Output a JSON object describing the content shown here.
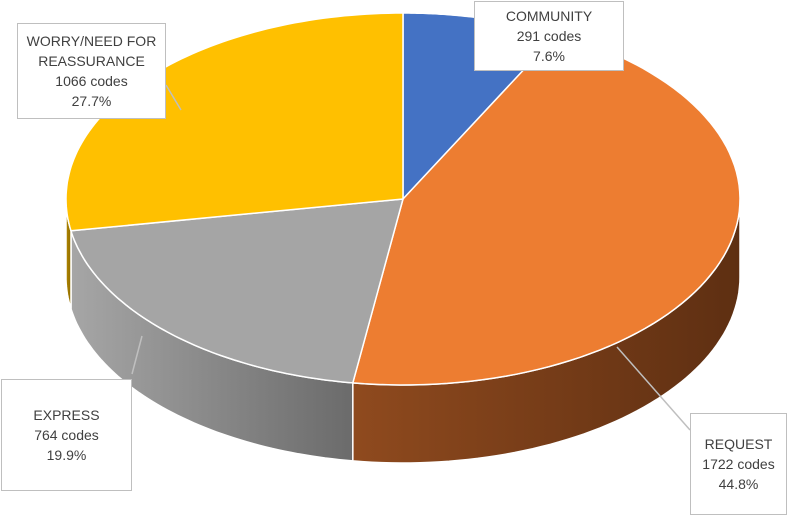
{
  "chart_data": {
    "type": "pie",
    "title": "",
    "slices": [
      {
        "label": "COMMUNITY",
        "count_text": "291 codes",
        "pct_text": "7.6%",
        "value": 291,
        "color": "#4472c4"
      },
      {
        "label": "REQUEST",
        "count_text": "1722 codes",
        "pct_text": "44.8%",
        "value": 1722,
        "color": "#ed7d31"
      },
      {
        "label": "EXPRESS",
        "count_text": "764 codes",
        "pct_text": "19.9%",
        "value": 764,
        "color": "#a5a5a5"
      },
      {
        "label": "WORRY/NEED FOR REASSURANCE",
        "label_lines": [
          "WORRY/NEED FOR",
          "REASSURANCE"
        ],
        "count_text": "1066 codes",
        "pct_text": "27.7%",
        "value": 1066,
        "color": "#ffc000"
      }
    ],
    "style": "3d-pie",
    "legend": "none"
  }
}
